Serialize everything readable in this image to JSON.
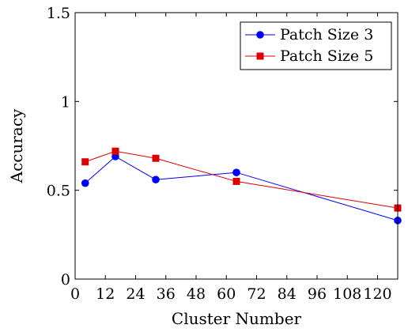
{
  "chart_data": {
    "type": "line",
    "xlabel": "Cluster Number",
    "ylabel": "Accuracy",
    "xlim": [
      0,
      128
    ],
    "ylim": [
      0,
      1.5
    ],
    "x_ticks": [
      0,
      12,
      24,
      36,
      48,
      60,
      72,
      84,
      96,
      108,
      120
    ],
    "y_ticks": [
      0,
      0.5,
      1,
      1.5
    ],
    "x_tick_labels": [
      "0",
      "12",
      "24",
      "36",
      "48",
      "60",
      "72",
      "84",
      "96",
      "108",
      "120"
    ],
    "y_tick_labels": [
      "0",
      "0.5",
      "1",
      "1.5"
    ],
    "grid": false,
    "legend_position": "top-right",
    "series": [
      {
        "name": "Patch Size 3",
        "color": "#0000ff",
        "marker": "circle",
        "x": [
          4,
          16,
          32,
          64,
          128
        ],
        "y": [
          0.54,
          0.69,
          0.56,
          0.6,
          0.33
        ]
      },
      {
        "name": "Patch Size 5",
        "color": "#dd0000",
        "marker": "square",
        "x": [
          4,
          16,
          32,
          64,
          128
        ],
        "y": [
          0.66,
          0.72,
          0.68,
          0.55,
          0.4
        ]
      }
    ]
  }
}
